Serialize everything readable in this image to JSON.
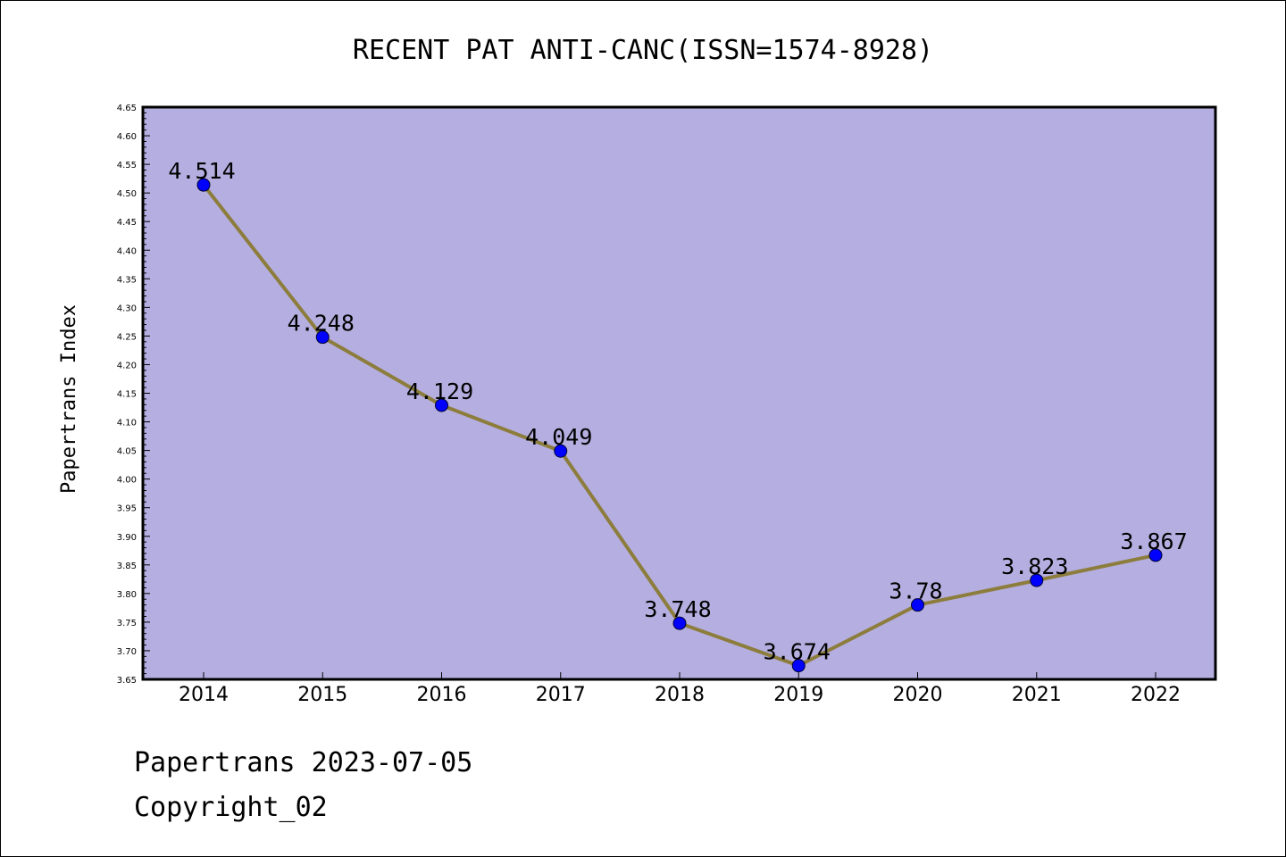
{
  "chart_data": {
    "type": "line",
    "title": "RECENT PAT ANTI-CANC(ISSN=1574-8928)",
    "ylabel": "Papertrans Index",
    "xlabel": "",
    "categories": [
      "2014",
      "2015",
      "2016",
      "2017",
      "2018",
      "2019",
      "2020",
      "2021",
      "2022"
    ],
    "values": [
      4.514,
      4.248,
      4.129,
      4.049,
      3.748,
      3.674,
      3.78,
      3.823,
      3.867
    ],
    "data_labels": [
      "4.514",
      "4.248",
      "4.129",
      "4.049",
      "3.748",
      "3.674",
      "3.78",
      "3.823",
      "3.867"
    ],
    "ylim": [
      3.65,
      4.65
    ],
    "yticks": [
      "3.65",
      "3.70",
      "3.75",
      "3.80",
      "3.85",
      "3.90",
      "3.95",
      "4.00",
      "4.05",
      "4.10",
      "4.15",
      "4.20",
      "4.25",
      "4.30",
      "4.35",
      "4.40",
      "4.45",
      "4.50",
      "4.55",
      "4.60",
      "4.65"
    ],
    "grid": false,
    "colors": {
      "plot_background": "#b5aee0",
      "line": "#8c7d3c",
      "marker": "#0000ff"
    }
  },
  "footer": {
    "line1": "Papertrans 2023-07-05",
    "line2": "Copyright_02"
  }
}
